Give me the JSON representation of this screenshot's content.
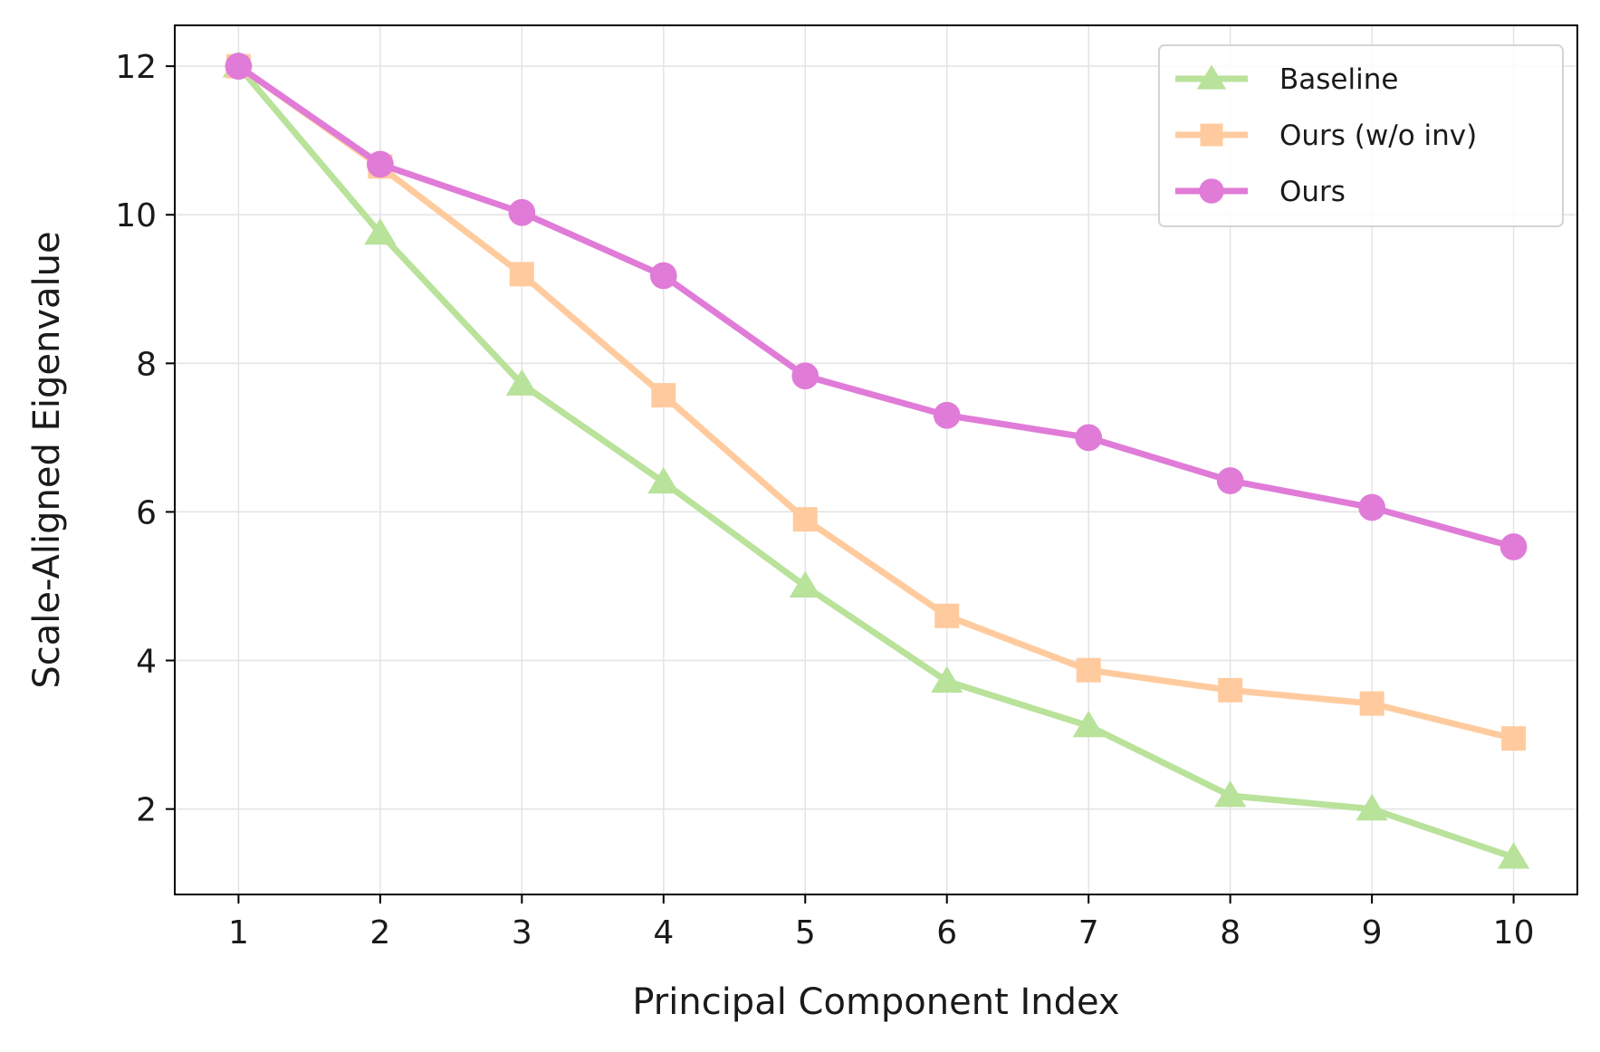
{
  "chart_data": {
    "type": "line",
    "title": "",
    "xlabel": "Principal Component Index",
    "ylabel": "Scale-Aligned Eigenvalue",
    "x": [
      1,
      2,
      3,
      4,
      5,
      6,
      7,
      8,
      9,
      10
    ],
    "xlim": [
      0.55,
      10.45
    ],
    "ylim": [
      0.85,
      12.55
    ],
    "xticks": [
      1,
      2,
      3,
      4,
      5,
      6,
      7,
      8,
      9,
      10
    ],
    "yticks": [
      2,
      4,
      6,
      8,
      10,
      12
    ],
    "grid": true,
    "legend_position": "top-right",
    "series": [
      {
        "name": "Baseline",
        "marker": "triangle",
        "color": "#b9e29a",
        "values": [
          12.0,
          9.75,
          7.72,
          6.4,
          5.0,
          3.72,
          3.12,
          2.18,
          2.0,
          1.35
        ]
      },
      {
        "name": "Ours (w/o inv)",
        "marker": "square",
        "color": "#ffcb9e",
        "values": [
          12.0,
          10.65,
          9.2,
          7.57,
          5.9,
          4.6,
          3.87,
          3.6,
          3.42,
          2.95
        ]
      },
      {
        "name": "Ours",
        "marker": "circle",
        "color": "#e07bd8",
        "values": [
          12.0,
          10.68,
          10.03,
          9.18,
          7.83,
          7.3,
          7.0,
          6.42,
          6.06,
          5.53
        ]
      }
    ]
  }
}
